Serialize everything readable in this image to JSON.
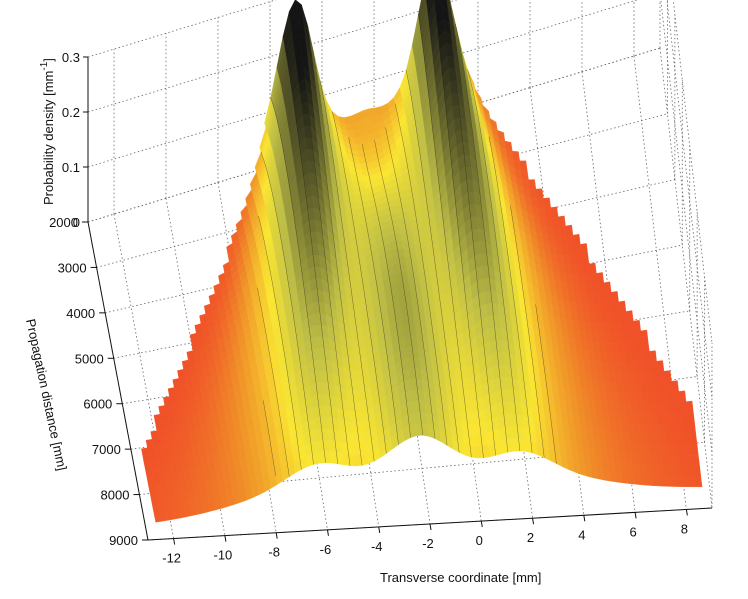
{
  "chart_data": {
    "type": "surface",
    "xlabel": "Transverse coordinate [mm]",
    "ylabel": "Propagation distance [mm]",
    "zlabel": "Probability density [mm",
    "zlabel_sup": "-1",
    "zlabel_close": "]",
    "x_ticks": [
      "-12",
      "-10",
      "-8",
      "-6",
      "-4",
      "-2",
      "0",
      "2",
      "4",
      "6",
      "8"
    ],
    "y_ticks": [
      "2000",
      "3000",
      "4000",
      "5000",
      "6000",
      "7000",
      "8000",
      "9000"
    ],
    "z_ticks": [
      "0",
      "0.1",
      "0.2",
      "0.3"
    ],
    "xlim": [
      -13,
      9
    ],
    "ylim": [
      2000,
      9000
    ],
    "zlim": [
      0,
      0.3
    ],
    "grid": true,
    "colormap": "hot (orange-yellow-black)",
    "description_peaks": [
      {
        "x": -5.0,
        "z_max": 0.26
      },
      {
        "x": 0.0,
        "z_max": 0.29
      }
    ]
  }
}
